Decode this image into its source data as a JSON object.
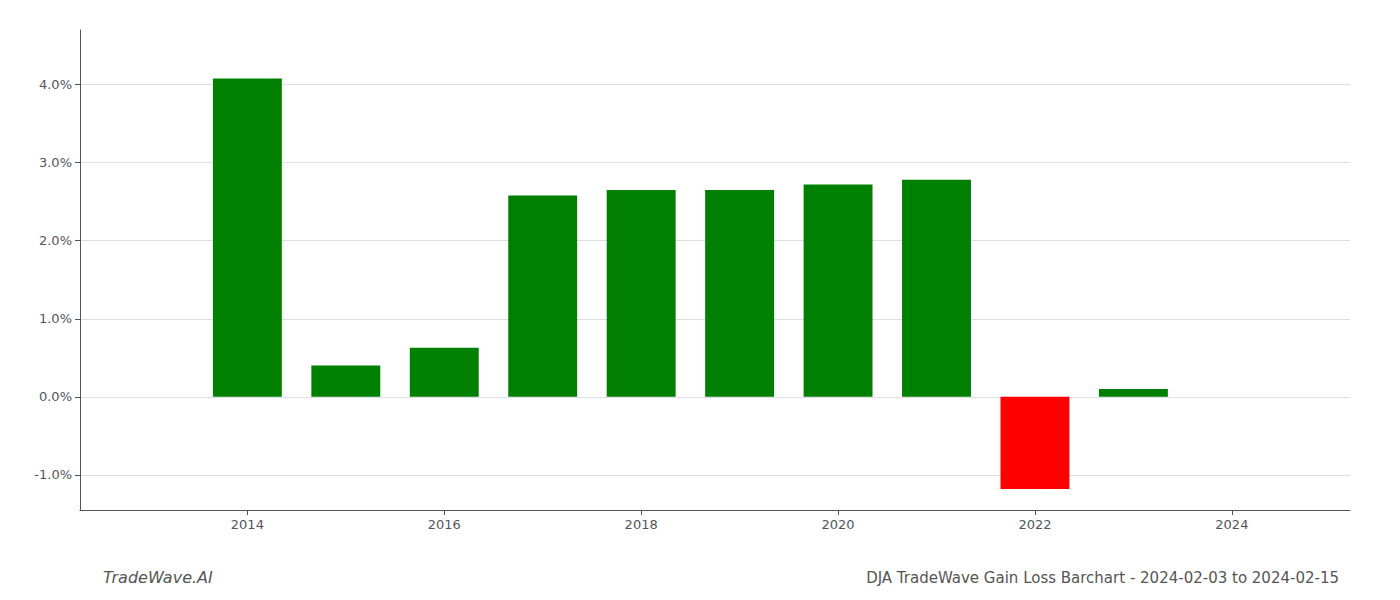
{
  "chart_data": {
    "type": "bar",
    "title": "DJA TradeWave Gain Loss Barchart - 2024-02-03 to 2024-02-15",
    "annotations": [
      "TradeWave.AI"
    ],
    "x": [
      2014,
      2015,
      2016,
      2017,
      2018,
      2019,
      2020,
      2021,
      2022,
      2023
    ],
    "values": [
      0.0408,
      0.004,
      0.0063,
      0.0258,
      0.0265,
      0.0265,
      0.0272,
      0.0278,
      -0.0118,
      0.001
    ],
    "colors": [
      "#008000",
      "#008000",
      "#008000",
      "#008000",
      "#008000",
      "#008000",
      "#008000",
      "#008000",
      "#ff0000",
      "#008000"
    ],
    "xlim": [
      2012.3,
      2025.2
    ],
    "xticks": [
      2014,
      2016,
      2018,
      2020,
      2022,
      2024
    ],
    "ylim": [
      -0.0145,
      0.047
    ],
    "yticks": [
      {
        "value": -0.01,
        "label": "-1.0%"
      },
      {
        "value": 0.0,
        "label": "0.0%"
      },
      {
        "value": 0.01,
        "label": "1.0%"
      },
      {
        "value": 0.02,
        "label": "2.0%"
      },
      {
        "value": 0.03,
        "label": "3.0%"
      },
      {
        "value": 0.04,
        "label": "4.0%"
      }
    ],
    "grid": true
  }
}
